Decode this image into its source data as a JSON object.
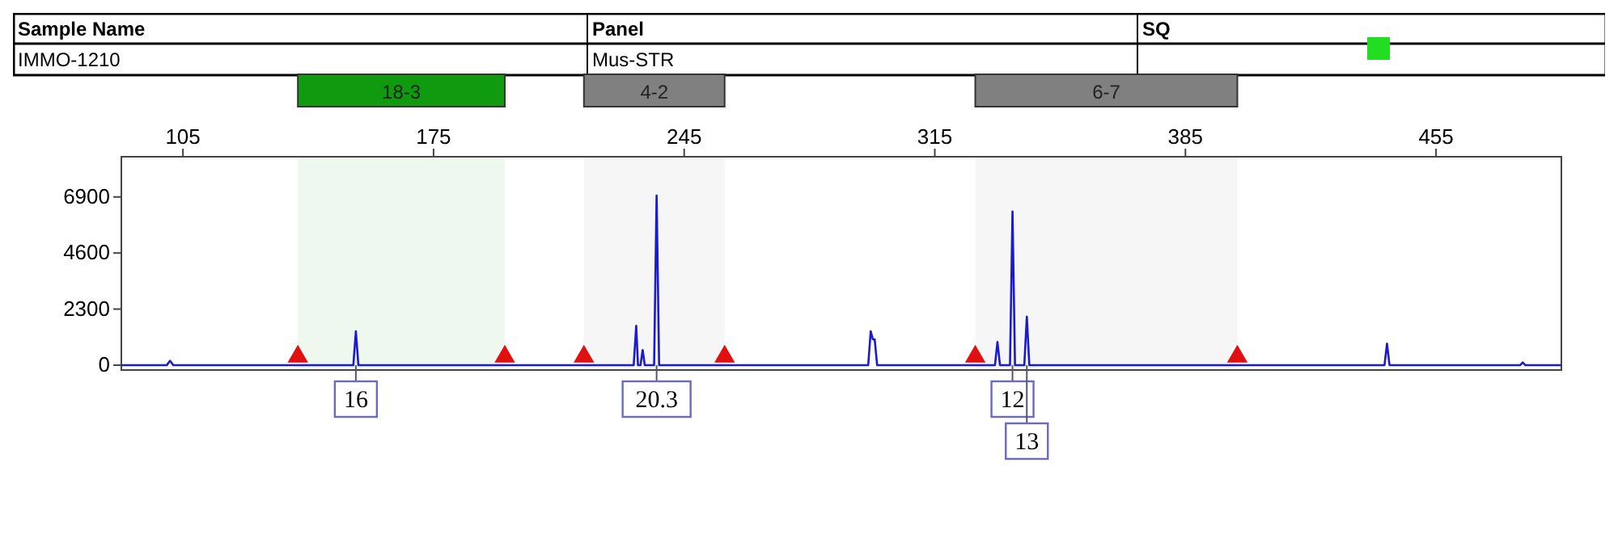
{
  "chart_data": {
    "type": "line",
    "xlim": [
      87.8,
      490
    ],
    "xticks": [
      105,
      175,
      245,
      315,
      385,
      455
    ],
    "ylim": [
      -200,
      8550
    ],
    "yticks": [
      0,
      2300,
      4600,
      6900
    ],
    "grid": false,
    "series": [
      {
        "color": "#1a1ad0",
        "x": [
          88,
          100.5,
          101.4,
          102.3,
          152.6,
          153.3,
          154,
          230.9,
          231.6,
          232.1,
          232.8,
          233.4,
          234,
          236.6,
          237.3,
          238,
          296.4,
          297.1,
          297.7,
          298.2,
          298.9,
          331.8,
          332.5,
          333.2,
          336,
          336.7,
          337.4,
          340,
          340.7,
          341.4,
          440.6,
          441.3,
          442,
          478.5,
          479.2,
          479.9,
          490
        ],
        "values": [
          0,
          0,
          180,
          0,
          0,
          1390,
          0,
          0,
          1610,
          0,
          0,
          620,
          0,
          0,
          6960,
          0,
          0,
          1390,
          1060,
          1060,
          0,
          0,
          950,
          0,
          0,
          6300,
          0,
          0,
          1990,
          0,
          0,
          880,
          0,
          0,
          110,
          0,
          0
        ]
      },
      {
        "type": "scatter",
        "marker": "triangle",
        "color": "#e01010",
        "x": [
          137.1,
          194.9,
          217,
          256.3,
          326.3,
          399.5
        ],
        "values": [
          350,
          350,
          350,
          350,
          350,
          350
        ]
      }
    ],
    "bands": [
      {
        "axis": "x",
        "from": 137.1,
        "to": 194.9,
        "label": "18-3",
        "color": "#109a10"
      },
      {
        "axis": "x",
        "from": 217,
        "to": 256.3,
        "label": "4-2",
        "color": "#808080"
      },
      {
        "axis": "x",
        "from": 326.3,
        "to": 399.5,
        "label": "6-7",
        "color": "#808080"
      }
    ],
    "annotations": [
      "Sample Name",
      "Panel",
      "SQ",
      "IMMO-1210",
      "Mus-STR",
      {
        "text": "16",
        "x": 153.3,
        "y": 0
      },
      {
        "text": "20.3",
        "x": 237.3,
        "y": 0
      },
      {
        "text": "12",
        "x": 336.7,
        "y": 0
      },
      {
        "text": "13",
        "x": 340.7,
        "y": 0
      }
    ]
  }
}
